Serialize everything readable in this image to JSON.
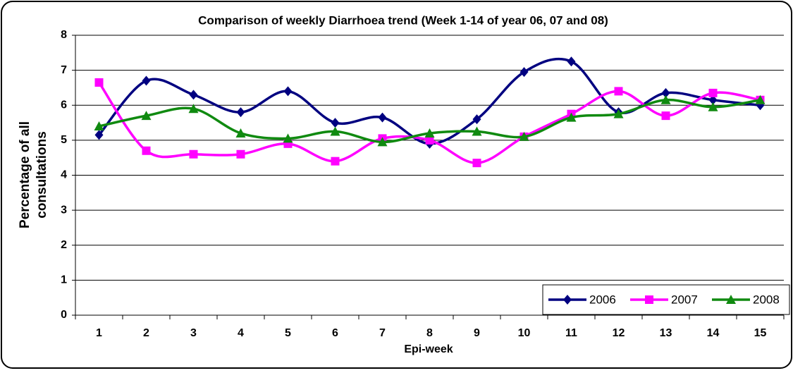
{
  "chart_data": {
    "type": "line",
    "title": "Comparison of weekly Diarrhoea trend (Week 1-14 of year 06, 07 and 08)",
    "xlabel": "Epi-week",
    "ylabel": [
      "Percentage of all",
      "consultations"
    ],
    "categories": [
      "1",
      "2",
      "3",
      "4",
      "5",
      "6",
      "7",
      "8",
      "9",
      "10",
      "11",
      "12",
      "13",
      "14",
      "15"
    ],
    "series": [
      {
        "name": "2006",
        "color": "#000080",
        "marker": "diamond",
        "values": [
          5.15,
          6.7,
          6.3,
          5.8,
          6.4,
          5.5,
          5.65,
          4.9,
          5.6,
          6.95,
          7.25,
          5.8,
          6.35,
          6.15,
          6.0
        ]
      },
      {
        "name": "2007",
        "color": "#ff00ff",
        "marker": "square",
        "values": [
          6.65,
          4.7,
          4.6,
          4.6,
          4.9,
          4.4,
          5.05,
          5.0,
          4.35,
          5.1,
          5.75,
          6.4,
          5.7,
          6.35,
          6.15
        ]
      },
      {
        "name": "2008",
        "color": "#108a10",
        "marker": "triangle",
        "values": [
          5.4,
          5.7,
          5.9,
          5.2,
          5.05,
          5.25,
          4.95,
          5.2,
          5.25,
          5.1,
          5.65,
          5.75,
          6.15,
          5.95,
          6.15
        ]
      }
    ],
    "ylim": [
      0,
      8
    ],
    "yticks": [
      0,
      1,
      2,
      3,
      4,
      5,
      6,
      7,
      8
    ],
    "grid": true,
    "smooth": true,
    "legend": "lower right"
  }
}
